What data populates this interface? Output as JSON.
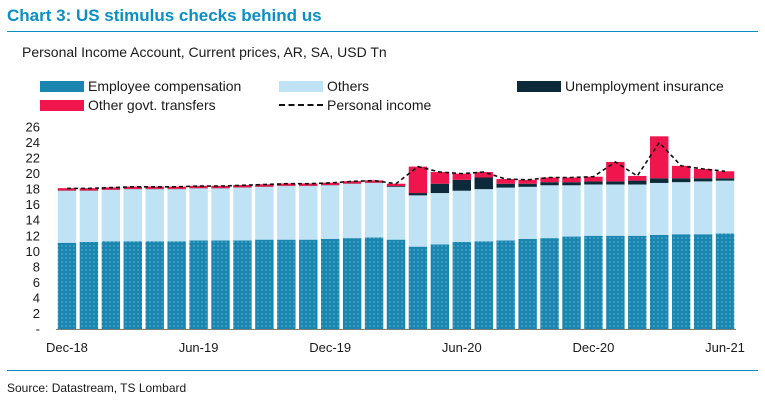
{
  "header": {
    "title": "Chart 3: US stimulus checks behind us",
    "subtitle": "Personal Income Account, Current prices, AR, SA, USD Tn"
  },
  "footer": {
    "source": "Source: Datastream, TS Lombard"
  },
  "colors": {
    "brand": "#0a8fc4",
    "employee": "#1a86b0",
    "others": "#bfe3f4",
    "unemployment": "#0d2a3a",
    "other_transfers": "#f0154c",
    "personal_income": "#111111"
  },
  "chart_data": {
    "type": "bar",
    "stacked": true,
    "title": "Chart 3: US stimulus checks behind us",
    "subtitle": "Personal Income Account, Current prices, AR, SA, USD Tn",
    "xlabel": "",
    "ylabel": "",
    "ylim": [
      0,
      26
    ],
    "yticks": [
      "26",
      "24",
      "22",
      "20",
      "18",
      "16",
      "14",
      "12",
      "10",
      "8",
      "6",
      "4",
      "2",
      "-"
    ],
    "ytick_values": [
      26,
      24,
      22,
      20,
      18,
      16,
      14,
      12,
      10,
      8,
      6,
      4,
      2,
      0
    ],
    "xtick_labels": [
      "Dec-18",
      "Jun-19",
      "Dec-19",
      "Jun-20",
      "Dec-20",
      "Jun-21"
    ],
    "xtick_indices": [
      0,
      6,
      12,
      18,
      24,
      30
    ],
    "categories": [
      "Dec-18",
      "Jan-19",
      "Feb-19",
      "Mar-19",
      "Apr-19",
      "May-19",
      "Jun-19",
      "Jul-19",
      "Aug-19",
      "Sep-19",
      "Oct-19",
      "Nov-19",
      "Dec-19",
      "Jan-20",
      "Feb-20",
      "Mar-20",
      "Apr-20",
      "May-20",
      "Jun-20",
      "Jul-20",
      "Aug-20",
      "Sep-20",
      "Oct-20",
      "Nov-20",
      "Dec-20",
      "Jan-21",
      "Feb-21",
      "Mar-21",
      "Apr-21",
      "May-21",
      "Jun-21"
    ],
    "legend": [
      {
        "key": "employee",
        "label": "Employee compensation"
      },
      {
        "key": "others",
        "label": "Others"
      },
      {
        "key": "unemployment",
        "label": "Unemployment insurance"
      },
      {
        "key": "other_transfers",
        "label": "Other govt. transfers"
      },
      {
        "key": "personal_income",
        "label": "Personal income"
      }
    ],
    "series": [
      {
        "name": "Employee compensation",
        "key": "employee",
        "values": [
          11.1,
          11.2,
          11.3,
          11.3,
          11.3,
          11.3,
          11.4,
          11.4,
          11.4,
          11.5,
          11.5,
          11.5,
          11.6,
          11.7,
          11.8,
          11.5,
          10.6,
          10.9,
          11.2,
          11.3,
          11.4,
          11.6,
          11.7,
          11.9,
          12.0,
          12.0,
          12.0,
          12.1,
          12.2,
          12.2,
          12.3
        ]
      },
      {
        "name": "Others",
        "key": "others",
        "values": [
          6.7,
          6.6,
          6.6,
          6.7,
          6.7,
          6.7,
          6.7,
          6.7,
          6.8,
          6.8,
          6.9,
          6.9,
          6.9,
          7.0,
          7.0,
          6.8,
          6.6,
          6.6,
          6.6,
          6.7,
          6.8,
          6.7,
          6.8,
          6.6,
          6.6,
          6.6,
          6.6,
          6.7,
          6.7,
          6.8,
          6.8
        ]
      },
      {
        "name": "Unemployment insurance",
        "key": "unemployment",
        "values": [
          0.03,
          0.03,
          0.03,
          0.03,
          0.03,
          0.03,
          0.03,
          0.03,
          0.03,
          0.03,
          0.03,
          0.03,
          0.03,
          0.03,
          0.03,
          0.1,
          0.3,
          1.2,
          1.4,
          1.5,
          0.5,
          0.4,
          0.4,
          0.4,
          0.4,
          0.4,
          0.5,
          0.6,
          0.5,
          0.4,
          0.3
        ]
      },
      {
        "name": "Other govt. transfers",
        "key": "other_transfers",
        "values": [
          0.3,
          0.3,
          0.3,
          0.3,
          0.3,
          0.3,
          0.3,
          0.3,
          0.3,
          0.3,
          0.3,
          0.3,
          0.3,
          0.3,
          0.3,
          0.3,
          3.4,
          1.5,
          0.8,
          0.7,
          0.6,
          0.5,
          0.6,
          0.6,
          0.6,
          2.5,
          0.6,
          5.4,
          1.6,
          1.2,
          0.9
        ]
      },
      {
        "name": "Personal income",
        "key": "personal_income",
        "type": "line",
        "style": "dashed",
        "values": [
          18.1,
          18.1,
          18.2,
          18.3,
          18.3,
          18.3,
          18.4,
          18.4,
          18.5,
          18.6,
          18.7,
          18.7,
          18.8,
          19.0,
          19.1,
          18.7,
          20.9,
          20.2,
          20.0,
          20.2,
          19.3,
          19.2,
          19.5,
          19.5,
          19.6,
          21.5,
          19.7,
          24.0,
          21.0,
          20.6,
          20.3
        ]
      }
    ]
  }
}
